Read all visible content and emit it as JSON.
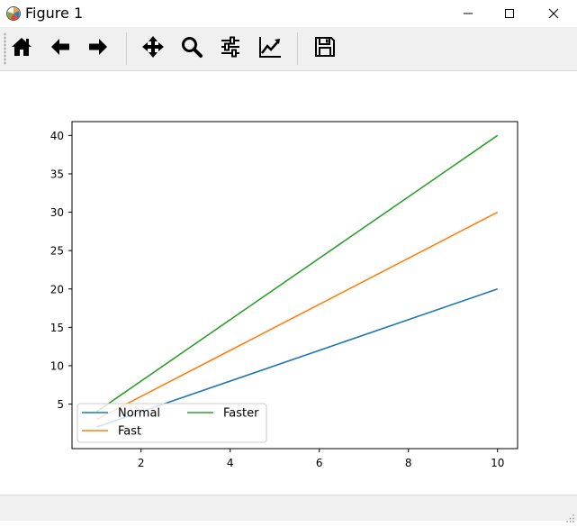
{
  "window": {
    "title": "Figure 1"
  },
  "icons": {
    "app": "matplotlib-icon",
    "minimize": "minimize-icon",
    "maximize": "maximize-icon",
    "close": "close-icon"
  },
  "toolbar": {
    "buttons": [
      {
        "name": "home",
        "icon": "home-icon"
      },
      {
        "name": "back",
        "icon": "arrow-left-icon"
      },
      {
        "name": "forward",
        "icon": "arrow-right-icon"
      },
      {
        "name": "pan",
        "icon": "move-icon"
      },
      {
        "name": "zoom",
        "icon": "zoom-icon"
      },
      {
        "name": "configure-subplots",
        "icon": "sliders-icon"
      },
      {
        "name": "edit-axis",
        "icon": "line-chart-icon"
      },
      {
        "name": "save",
        "icon": "save-icon"
      }
    ]
  },
  "chart_data": {
    "type": "line",
    "title": "",
    "xlabel": "",
    "ylabel": "",
    "xlim": [
      0.45,
      10.45
    ],
    "ylim": [
      -0.8,
      41.8
    ],
    "xticks": [
      2,
      4,
      6,
      8,
      10
    ],
    "yticks": [
      5,
      10,
      15,
      20,
      25,
      30,
      35,
      40
    ],
    "grid": false,
    "legend": {
      "position": "lower-left",
      "columns": 2
    },
    "x": [
      1,
      10
    ],
    "series": [
      {
        "name": "Normal",
        "color": "#1f77b4",
        "values": [
          2,
          20
        ]
      },
      {
        "name": "Fast",
        "color": "#ff7f0e",
        "values": [
          3,
          30
        ]
      },
      {
        "name": "Faster",
        "color": "#2ca02c",
        "values": [
          4,
          40
        ]
      }
    ]
  }
}
